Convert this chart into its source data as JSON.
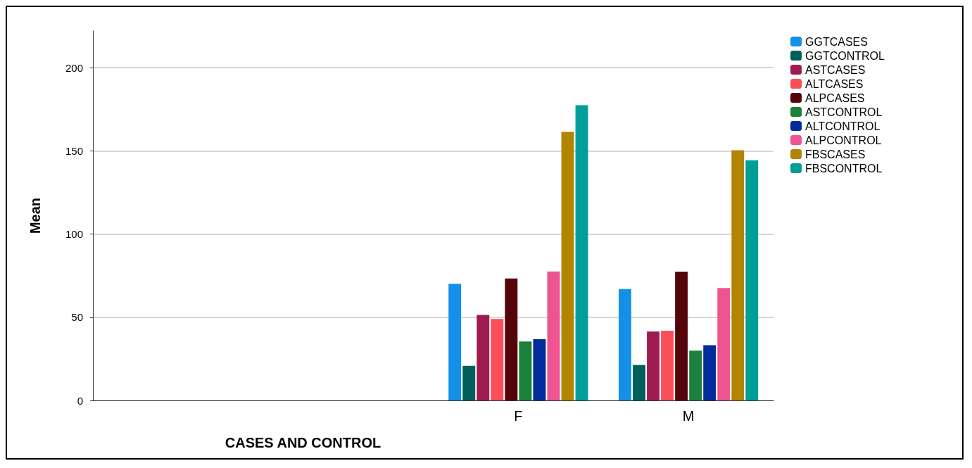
{
  "chart_data": {
    "type": "bar",
    "xlabel": "CASES AND CONTROL",
    "ylabel": "Mean",
    "categories": [
      null,
      null,
      "F",
      "M"
    ],
    "series": [
      {
        "name": "GGTCASES",
        "color": "#1490e8",
        "values": [
          null,
          null,
          70.1,
          66.9
        ]
      },
      {
        "name": "GGTCONTROL",
        "color": "#005f5a",
        "values": [
          null,
          null,
          20.8,
          21.3
        ]
      },
      {
        "name": "ASTCASES",
        "color": "#a01a52",
        "values": [
          null,
          null,
          51.4,
          41.4
        ]
      },
      {
        "name": "ALTCASES",
        "color": "#fb4f57",
        "values": [
          null,
          null,
          48.9,
          41.9
        ]
      },
      {
        "name": "ALPCASES",
        "color": "#55050a",
        "values": [
          null,
          null,
          73.3,
          77.4
        ]
      },
      {
        "name": "ASTCONTROL",
        "color": "#1b803a",
        "values": [
          null,
          null,
          35.4,
          29.9
        ]
      },
      {
        "name": "ALTCONTROL",
        "color": "#002b9a",
        "values": [
          null,
          null,
          36.8,
          33.2
        ]
      },
      {
        "name": "ALPCONTROL",
        "color": "#ee5490",
        "values": [
          null,
          null,
          77.5,
          67.5
        ]
      },
      {
        "name": "FBSCASES",
        "color": "#b38400",
        "values": [
          null,
          null,
          161.4,
          150.3
        ]
      },
      {
        "name": "FBSCONTROL",
        "color": "#009e9a",
        "values": [
          null,
          null,
          177.4,
          144.3
        ]
      }
    ],
    "ylim": [
      0,
      222
    ],
    "yticks": [
      0,
      50,
      100,
      150,
      200
    ],
    "grid": "y",
    "legend": "top right"
  }
}
